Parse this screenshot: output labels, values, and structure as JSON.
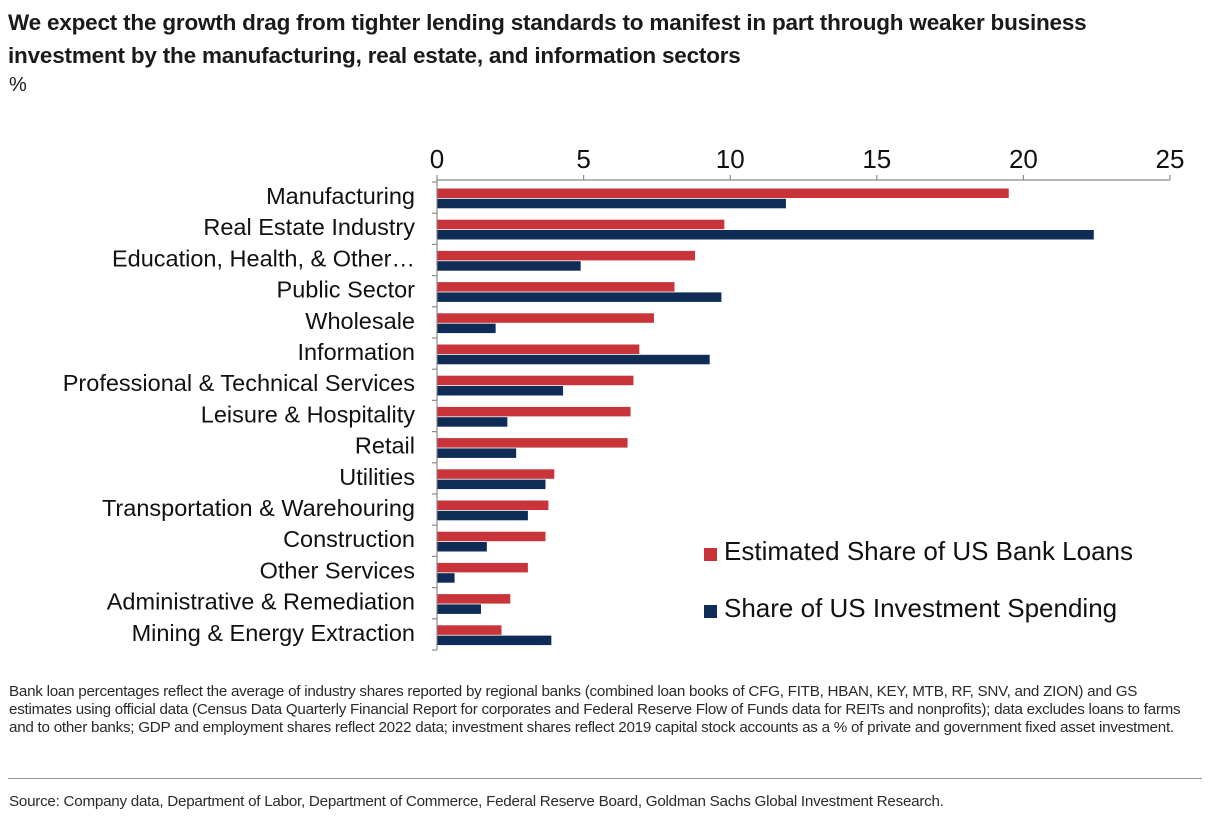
{
  "title": "We expect the growth drag from tighter lending standards to manifest in part through weaker business investment by the manufacturing, real estate, and information sectors",
  "unit_label": "%",
  "chart_data": {
    "type": "bar",
    "orientation": "horizontal",
    "categories": [
      "Manufacturing",
      "Real Estate Industry",
      "Education, Health, & Other…",
      "Public Sector",
      "Wholesale",
      "Information",
      "Professional & Technical Services",
      "Leisure & Hospitality",
      "Retail",
      "Utilities",
      "Transportation & Warehouring",
      "Construction",
      "Other Services",
      "Administrative & Remediation",
      "Mining & Energy Extraction"
    ],
    "series": [
      {
        "name": "Estimated Share of US Bank Loans",
        "color": "#c8343a",
        "values": [
          19.5,
          9.8,
          8.8,
          8.1,
          7.4,
          6.9,
          6.7,
          6.6,
          6.5,
          4.0,
          3.8,
          3.7,
          3.1,
          2.5,
          2.2
        ]
      },
      {
        "name": "Share of US Investment Spending",
        "color": "#0e2c55",
        "values": [
          11.9,
          22.4,
          4.9,
          9.7,
          2.0,
          9.3,
          4.3,
          2.4,
          2.7,
          3.7,
          3.1,
          1.7,
          0.6,
          1.5,
          3.9
        ]
      }
    ],
    "xlim": [
      0,
      25
    ],
    "xticks": [
      "0",
      "5",
      "10",
      "15",
      "20",
      "25"
    ],
    "x_axis_position": "top",
    "grid": false,
    "legend_position": "bottom-right"
  },
  "footnote": "Bank loan percentages reflect the average of industry shares reported by regional banks (combined loan books of CFG, FITB, HBAN, KEY, MTB, RF, SNV, and ZION) and GS estimates using official data (Census Data Quarterly Financial Report for corporates and Federal Reserve Flow of Funds data for REITs and nonprofits); data excludes loans to farms and to other banks; GDP and employment shares reflect 2022 data; investment shares reflect 2019 capital stock accounts as a % of private and government fixed asset investment.",
  "source": "Source: Company data, Department of Labor, Department of Commerce, Federal Reserve Board, Goldman Sachs Global Investment Research."
}
